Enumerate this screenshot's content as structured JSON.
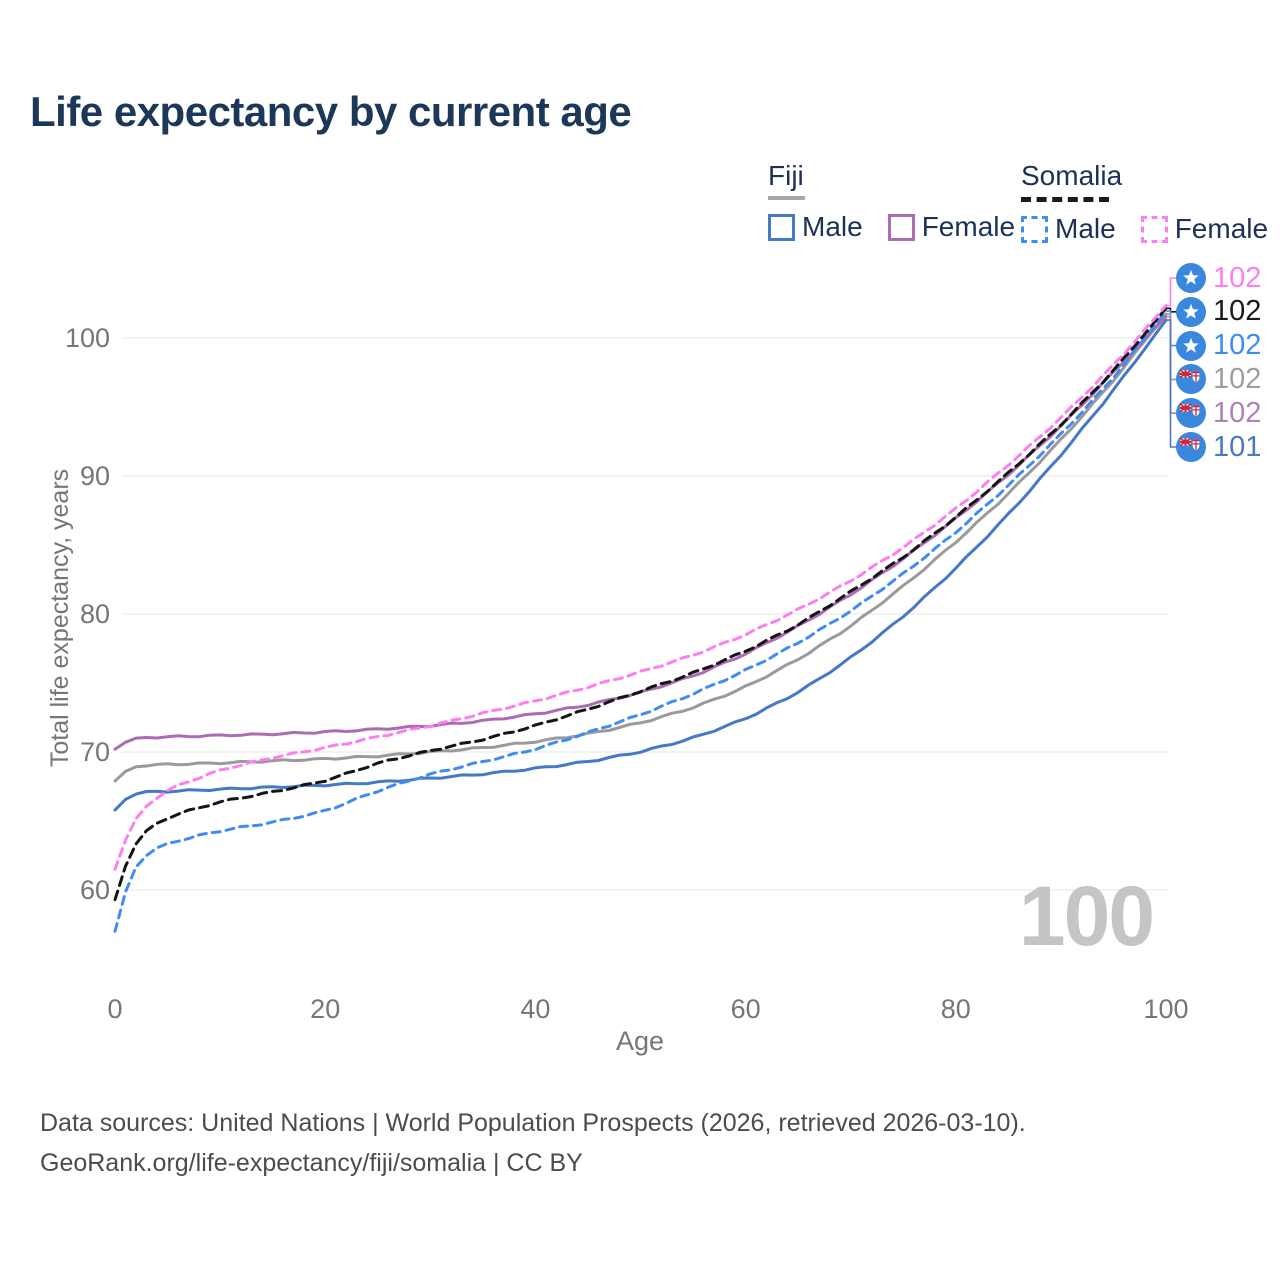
{
  "header": {
    "title": "Life expectancy by current age"
  },
  "legend": {
    "groups": [
      {
        "country": "Fiji",
        "line_style": "solid",
        "underline_color": "#a7a7a7",
        "items": [
          {
            "label": "Male",
            "color": "#4579c5",
            "dashed": false
          },
          {
            "label": "Female",
            "color": "#ab6cb4",
            "dashed": false
          }
        ]
      },
      {
        "country": "Somalia",
        "line_style": "dashed",
        "underline_color": "#1a1a1a",
        "items": [
          {
            "label": "Male",
            "color": "#418cf0",
            "dashed": true
          },
          {
            "label": "Female",
            "color": "#fc7fee",
            "dashed": true
          }
        ]
      }
    ]
  },
  "chart_data": {
    "type": "line",
    "title": "Life expectancy by current age",
    "xlabel": "Age",
    "ylabel": "Total life expectancy, years",
    "xlim": [
      0,
      100
    ],
    "ylim": [
      56,
      104
    ],
    "x_ticks": [
      0,
      20,
      40,
      60,
      80,
      100
    ],
    "y_ticks": [
      60,
      70,
      80,
      90,
      100
    ],
    "grid": "horizontal",
    "watermark": "100",
    "ages": [
      0,
      1,
      2,
      3,
      5,
      10,
      15,
      20,
      25,
      30,
      35,
      40,
      45,
      50,
      55,
      60,
      65,
      70,
      75,
      80,
      85,
      90,
      95,
      100
    ],
    "series": [
      {
        "key": "fiji_total",
        "name": "Fiji",
        "country": "Fiji",
        "sex": "total",
        "color": "#9a9a9a",
        "dash": false,
        "values": [
          67.9,
          69.0,
          69.0,
          69.05,
          69.1,
          69.2,
          69.35,
          69.5,
          69.7,
          70.0,
          70.3,
          70.75,
          71.3,
          72.1,
          73.2,
          74.7,
          76.7,
          79.1,
          82.0,
          85.2,
          88.7,
          92.6,
          96.9,
          101.75
        ]
      },
      {
        "key": "fiji_male",
        "name": "Fiji Male",
        "country": "Fiji",
        "sex": "male",
        "color": "#4579c5",
        "dash": false,
        "values": [
          65.8,
          67.0,
          67.05,
          67.1,
          67.15,
          67.3,
          67.45,
          67.6,
          67.8,
          68.1,
          68.4,
          68.8,
          69.3,
          70.0,
          71.0,
          72.4,
          74.3,
          76.8,
          79.8,
          83.3,
          87.2,
          91.5,
          96.2,
          101.3
        ]
      },
      {
        "key": "fiji_female",
        "name": "Fiji Female",
        "country": "Fiji",
        "sex": "female",
        "color": "#ab6cb4",
        "dash": false,
        "values": [
          70.2,
          71.0,
          71.0,
          71.05,
          71.1,
          71.2,
          71.3,
          71.45,
          71.65,
          71.9,
          72.25,
          72.75,
          73.4,
          74.3,
          75.5,
          77.1,
          79.1,
          81.4,
          84.0,
          86.9,
          90.1,
          93.6,
          97.5,
          101.55
        ]
      },
      {
        "key": "somalia_male",
        "name": "Somalia Male",
        "country": "Somalia",
        "sex": "male",
        "color": "#418cf0",
        "dash": true,
        "values": [
          57.0,
          61.0,
          62.0,
          62.7,
          63.4,
          64.3,
          64.9,
          65.7,
          67.2,
          68.4,
          69.3,
          70.2,
          71.4,
          72.7,
          74.2,
          75.9,
          77.9,
          80.2,
          82.9,
          85.9,
          89.3,
          93.0,
          97.1,
          101.95
        ]
      },
      {
        "key": "somalia_total",
        "name": "Somalia",
        "country": "Somalia",
        "sex": "total",
        "color": "#151515",
        "dash": true,
        "values": [
          59.3,
          62.6,
          63.6,
          64.4,
          65.3,
          66.4,
          67.1,
          67.9,
          69.2,
          70.1,
          70.9,
          71.9,
          73.1,
          74.4,
          75.7,
          77.3,
          79.2,
          81.6,
          84.1,
          87.0,
          90.2,
          93.7,
          97.6,
          102.15
        ]
      },
      {
        "key": "somalia_female",
        "name": "Somalia Female",
        "country": "Somalia",
        "sex": "female",
        "color": "#fc7fee",
        "dash": true,
        "values": [
          61.5,
          64.3,
          65.3,
          66.2,
          67.3,
          68.7,
          69.6,
          70.3,
          71.1,
          71.9,
          72.8,
          73.7,
          74.7,
          75.8,
          77.0,
          78.5,
          80.3,
          82.4,
          84.8,
          87.6,
          90.8,
          94.2,
          98.0,
          102.35
        ]
      }
    ]
  },
  "end_labels": [
    {
      "series": "somalia_female",
      "value": "102",
      "color": "#fc7fee",
      "flag": "somalia"
    },
    {
      "series": "somalia_total",
      "value": "102",
      "color": "#1a1a1a",
      "flag": "somalia"
    },
    {
      "series": "somalia_male",
      "value": "102",
      "color": "#418cf0",
      "flag": "somalia"
    },
    {
      "series": "fiji_total",
      "value": "102",
      "color": "#9e9e9e",
      "flag": "fiji"
    },
    {
      "series": "fiji_female",
      "value": "102",
      "color": "#b27fba",
      "flag": "fiji"
    },
    {
      "series": "fiji_male",
      "value": "101",
      "color": "#4b79c0",
      "flag": "fiji"
    }
  ],
  "footer": {
    "line1": "Data sources: United Nations | World Population Prospects (2026, retrieved 2026-03-10).",
    "line2": "GeoRank.org/life-expectancy/fiji/somalia | CC BY"
  }
}
